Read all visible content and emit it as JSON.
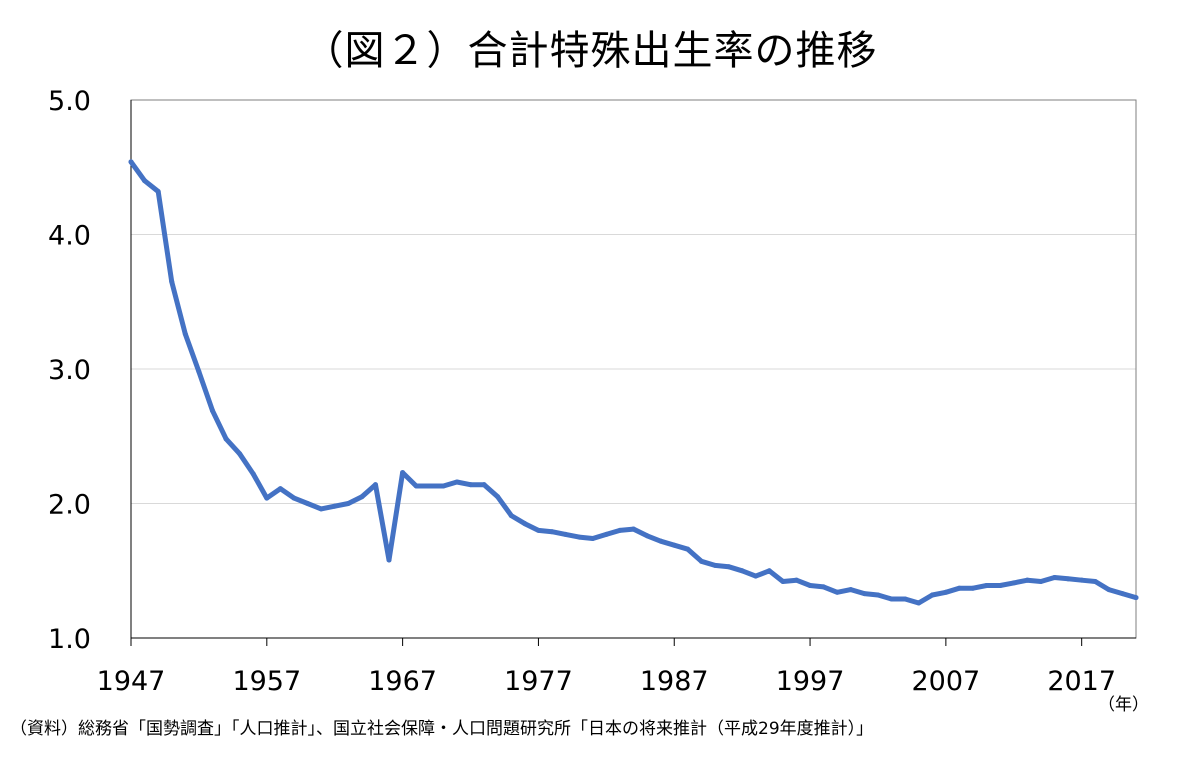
{
  "chart_data": {
    "type": "line",
    "title": "（図２）合計特殊出生率の推移",
    "source_note": "（資料）総務省「国勢調査」「人口推計」、国立社会保障・人口問題研究所「日本の将来推計（平成29年度推計）」",
    "x_unit_label": "（年）",
    "xlim": [
      1947,
      2021
    ],
    "ylim": [
      1.0,
      5.0
    ],
    "x_ticks": [
      1947,
      1957,
      1967,
      1977,
      1987,
      1997,
      2007,
      2017
    ],
    "y_ticks": [
      1.0,
      2.0,
      3.0,
      4.0,
      5.0
    ],
    "y_tick_labels": [
      "1.0",
      "2.0",
      "3.0",
      "4.0",
      "5.0"
    ],
    "grid": true,
    "line_color": "#4472C4",
    "series": [
      {
        "x": [
          1947,
          1948,
          1949,
          1950,
          1951,
          1952,
          1953,
          1954,
          1955,
          1956,
          1957,
          1958,
          1959,
          1960,
          1961,
          1962,
          1963,
          1964,
          1965,
          1966,
          1967,
          1968,
          1969,
          1970,
          1971,
          1972,
          1973,
          1974,
          1975,
          1976,
          1977,
          1978,
          1979,
          1980,
          1981,
          1982,
          1983,
          1984,
          1985,
          1986,
          1987,
          1988,
          1989,
          1990,
          1991,
          1992,
          1993,
          1994,
          1995,
          1996,
          1997,
          1998,
          1999,
          2000,
          2001,
          2002,
          2003,
          2004,
          2005,
          2006,
          2007,
          2008,
          2009,
          2010,
          2011,
          2012,
          2013,
          2014,
          2015,
          2016,
          2017,
          2018,
          2019,
          2020,
          2021
        ],
        "values": [
          4.54,
          4.4,
          4.32,
          3.65,
          3.26,
          2.98,
          2.69,
          2.48,
          2.37,
          2.22,
          2.04,
          2.11,
          2.04,
          2.0,
          1.96,
          1.98,
          2.0,
          2.05,
          2.14,
          1.58,
          2.23,
          2.13,
          2.13,
          2.13,
          2.16,
          2.14,
          2.14,
          2.05,
          1.91,
          1.85,
          1.8,
          1.79,
          1.77,
          1.75,
          1.74,
          1.77,
          1.8,
          1.81,
          1.76,
          1.72,
          1.69,
          1.66,
          1.57,
          1.54,
          1.53,
          1.5,
          1.46,
          1.5,
          1.42,
          1.43,
          1.39,
          1.38,
          1.34,
          1.36,
          1.33,
          1.32,
          1.29,
          1.29,
          1.26,
          1.32,
          1.34,
          1.37,
          1.37,
          1.39,
          1.39,
          1.41,
          1.43,
          1.42,
          1.45,
          1.44,
          1.43,
          1.42,
          1.36,
          1.33,
          1.3
        ]
      }
    ]
  }
}
